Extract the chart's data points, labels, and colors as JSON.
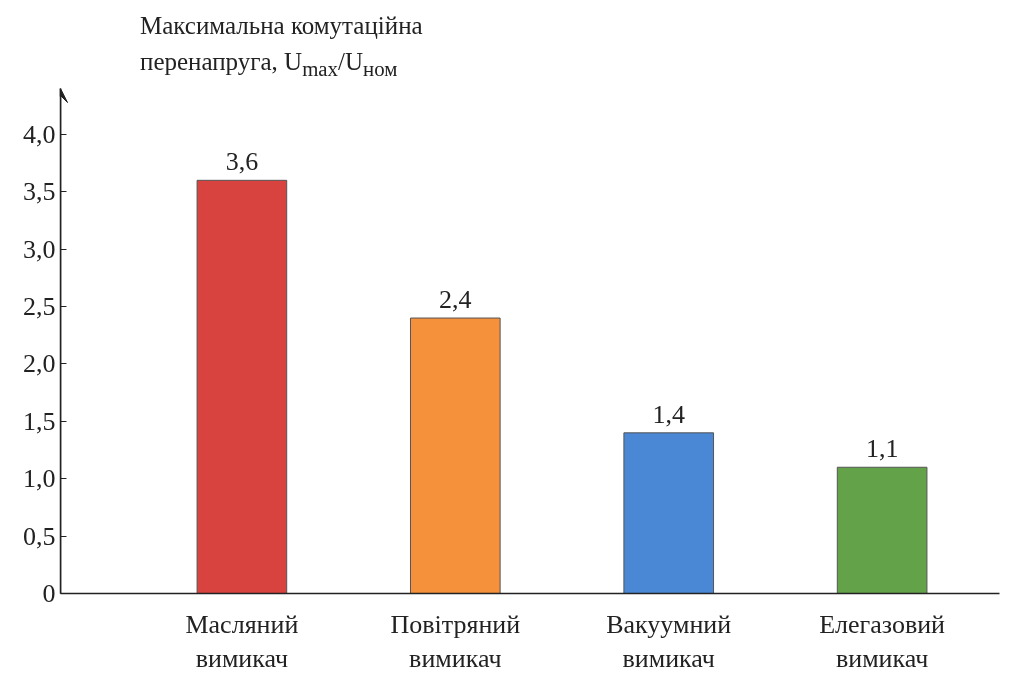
{
  "chart_data": {
    "type": "bar",
    "ylabel": "Максимальна комутаційна перенапруга, U$_{max}$/U$_{ном}$",
    "categories": [
      "Масляний вимикач",
      "Повітряний вимикач",
      "Вакуумний вимикач",
      "Елегазовий вимикач"
    ],
    "values": [
      3.6,
      2.4,
      1.4,
      1.1
    ],
    "colors": [
      "#d9433f",
      "#f5913a",
      "#4a87d4",
      "#64a24a"
    ],
    "value_labels": [
      "3,6",
      "2,4",
      "1,4",
      "1,1"
    ],
    "ylim": [
      0,
      4.4
    ],
    "yticks": [
      0,
      {
        "value": 0.5,
        "label": "0,5"
      },
      {
        "value": 1.0,
        "label": "1,0"
      },
      {
        "value": 1.5,
        "label": "1,5"
      },
      {
        "value": 2.0,
        "label": "2,0"
      },
      {
        "value": 2.5,
        "label": "2,5"
      },
      {
        "value": 3.0,
        "label": "3,0"
      },
      {
        "value": 3.5,
        "label": "3,5"
      },
      {
        "value": 4.0,
        "label": "4,0"
      }
    ],
    "grid": false
  }
}
